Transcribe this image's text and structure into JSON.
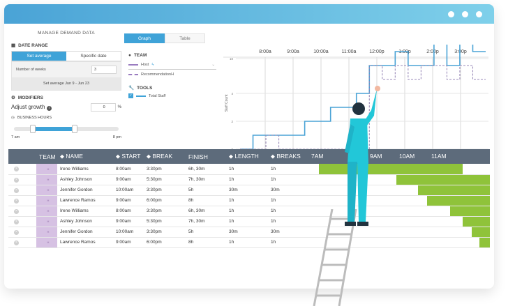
{
  "window": {
    "title_dots": [
      "dot",
      "dot",
      "dot"
    ]
  },
  "left": {
    "title": "MANAGE DEMAND DATA",
    "date_range_label": "DATE RANGE",
    "seg_average": "Set average",
    "seg_specific": "Specific date",
    "weeks_label": "Number of weeks",
    "weeks_value": "3",
    "avg_text": "Set average Jun 9 - Jun 23",
    "modifiers_label": "MODIFIERS",
    "adjust_label": "Adjust growth",
    "adjust_value": "0",
    "adjust_unit": "%",
    "business_label": "BUSINESS HOURS",
    "hour_start": "7 am",
    "hour_end": "8 pm",
    "slider_low": 0.18,
    "slider_high": 0.58
  },
  "tabs": {
    "graph": "Graph",
    "table": "Table"
  },
  "mid": {
    "team_label": "TEAM",
    "team_select": "Host",
    "recommendation": "RecommendationH",
    "tools_label": "TOOLS",
    "total_staff": "Total Staff"
  },
  "chart_data": {
    "type": "line",
    "x_ticks": [
      "8:00a",
      "9:00a",
      "10:00a",
      "11:00a",
      "12:00p",
      "1:00p",
      "2:00p",
      "3:00p"
    ],
    "ylabel": "Staff Count",
    "y_ticks": [
      "0",
      "2",
      "4",
      "10"
    ],
    "series": [
      {
        "color": "#4aa3d6",
        "values": [
          0,
          1,
          1,
          1,
          1,
          2,
          2,
          3,
          3,
          4,
          6,
          6,
          7,
          6,
          6,
          8,
          6,
          8,
          7
        ]
      },
      {
        "color": "#9a8ab8",
        "values": [
          0,
          0,
          1,
          0,
          0,
          0,
          0,
          0,
          0,
          0,
          6,
          5,
          6,
          5,
          6,
          6,
          5,
          6,
          5
        ]
      }
    ]
  },
  "table": {
    "headers": [
      "",
      "TEAM",
      "NAME",
      "START",
      "BREAK",
      "FINISH",
      "LENGTH",
      "BREAKS"
    ],
    "time_headers": [
      "7AM",
      "9AM",
      "10AM",
      "11AM"
    ],
    "rows": [
      {
        "team": "H",
        "name": "Irene Williams",
        "start": "8:00am",
        "break": "3:30pm",
        "finish": "6h, 30m",
        "length": "1h",
        "breaks": "1h",
        "bar_start": 0.05,
        "bar_end": 0.85
      },
      {
        "team": "H",
        "name": "Ashley Johnson",
        "start": "9:00am",
        "break": "5:30pm",
        "finish": "7h, 30m",
        "length": "1h",
        "breaks": "1h",
        "bar_start": 0.48,
        "bar_end": 1.0
      },
      {
        "team": "H",
        "name": "Jennifer Gordon",
        "start": "10:00am",
        "break": "3:30pm",
        "finish": "5h",
        "length": "30m",
        "breaks": "30m",
        "bar_start": 0.6,
        "bar_end": 1.0
      },
      {
        "team": "H",
        "name": "Lawrence Ramos",
        "start": "9:00am",
        "break": "6:00pm",
        "finish": "8h",
        "length": "1h",
        "breaks": "1h",
        "bar_start": 0.65,
        "bar_end": 1.0
      },
      {
        "team": "H",
        "name": "Irene Williams",
        "start": "8:00am",
        "break": "3:30pm",
        "finish": "6h, 30m",
        "length": "1h",
        "breaks": "1h",
        "bar_start": 0.78,
        "bar_end": 1.0
      },
      {
        "team": "H",
        "name": "Ashley Johnson",
        "start": "9:00am",
        "break": "5:30pm",
        "finish": "7h, 30m",
        "length": "1h",
        "breaks": "1h",
        "bar_start": 0.85,
        "bar_end": 1.0
      },
      {
        "team": "H",
        "name": "Jennifer Gordon",
        "start": "10:00am",
        "break": "3:30pm",
        "finish": "5h",
        "length": "30m",
        "breaks": "30m",
        "bar_start": 0.9,
        "bar_end": 1.0
      },
      {
        "team": "H",
        "name": "Lawrence Ramos",
        "start": "9:00am",
        "break": "6:00pm",
        "finish": "8h",
        "length": "1h",
        "breaks": "1h",
        "bar_start": 0.94,
        "bar_end": 1.0
      }
    ]
  }
}
